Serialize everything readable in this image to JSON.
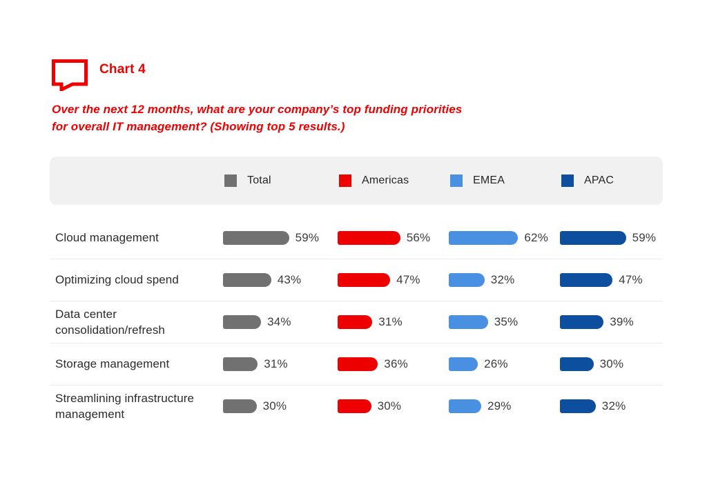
{
  "header": {
    "icon": "speech-bubble-icon",
    "title": "Chart 4"
  },
  "question": {
    "line1": "Over the next 12 months, what are your company’s top funding priorities",
    "line2": "for overall IT management? (Showing top 5 results.)"
  },
  "colors": {
    "accent_red": "#EE0000",
    "legend_bg": "#F1F1F1",
    "separator": "#ECECEC",
    "label_text": "#2B2B2B",
    "value_text": "#3B3B3B"
  },
  "chart_data": {
    "type": "bar",
    "title": "Chart 4",
    "subtitle": "Over the next 12 months, what are your company’s top funding priorities for overall IT management? (Showing top 5 results.)",
    "unit": "%",
    "orientation": "horizontal",
    "legend_position": "top",
    "value_labels": "shown",
    "xlim": [
      0,
      100
    ],
    "categories": [
      "Cloud management",
      "Optimizing cloud spend",
      "Data center consolidation/refresh",
      "Storage management",
      "Streamlining infrastructure management"
    ],
    "series": [
      {
        "name": "Total",
        "color": "#717171",
        "values": [
          59,
          43,
          34,
          31,
          30
        ]
      },
      {
        "name": "Americas",
        "color": "#EE0000",
        "values": [
          56,
          47,
          31,
          36,
          30
        ]
      },
      {
        "name": "EMEA",
        "color": "#4A90E2",
        "values": [
          62,
          32,
          35,
          26,
          29
        ]
      },
      {
        "name": "APAC",
        "color": "#0D4F9E",
        "values": [
          59,
          47,
          39,
          30,
          32
        ]
      }
    ]
  }
}
